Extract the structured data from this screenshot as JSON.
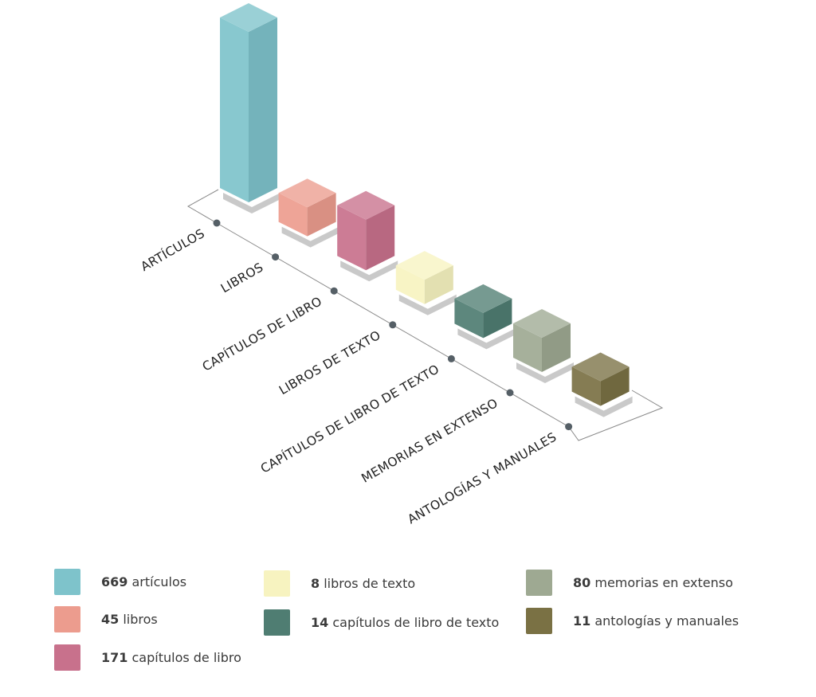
{
  "chart_data": {
    "type": "bar",
    "style": "isometric-3d",
    "categories": [
      "ARTÍCULOS",
      "LIBROS",
      "CAPÍTULOS DE LIBRO",
      "LIBROS DE TEXTO",
      "CAPÍTULOS DE LIBRO DE TEXTO",
      "MEMORIAS EN EXTENSO",
      "ANTOLOGÍAS Y MANUALES"
    ],
    "values": [
      669,
      45,
      171,
      8,
      14,
      80,
      11
    ],
    "colors": [
      "#7ec3cb",
      "#ec9c8e",
      "#c8718c",
      "#f7f3c0",
      "#4f7d72",
      "#9ea992",
      "#7a7144"
    ],
    "legend": [
      {
        "value": "669",
        "label": "artículos",
        "color": "#7ec3cb"
      },
      {
        "value": "45",
        "label": "libros",
        "color": "#ec9c8e"
      },
      {
        "value": "171",
        "label": "capítulos de libro",
        "color": "#c8718c"
      },
      {
        "value": "8",
        "label": "libros de texto",
        "color": "#f7f3c0"
      },
      {
        "value": "14",
        "label": "capítulos de libro de texto",
        "color": "#4f7d72"
      },
      {
        "value": "80",
        "label": "memorias en extenso",
        "color": "#9ea992"
      },
      {
        "value": "11",
        "label": "antologías y manuales",
        "color": "#7a7144"
      }
    ],
    "title": "",
    "legend_placement": "bottom"
  }
}
